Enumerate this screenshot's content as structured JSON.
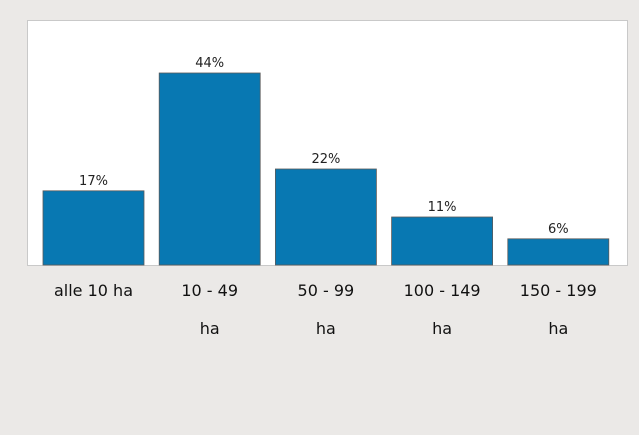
{
  "chart_data": {
    "type": "bar",
    "categories": [
      "alle 10 ha",
      "10 - 49 ha",
      "50 - 99 ha",
      "100 - 149 ha",
      "150 - 199 ha"
    ],
    "values": [
      17,
      44,
      22,
      11,
      6
    ],
    "value_labels": [
      "17%",
      "44%",
      "22%",
      "11%",
      "6%"
    ],
    "color": "#0878b2"
  }
}
